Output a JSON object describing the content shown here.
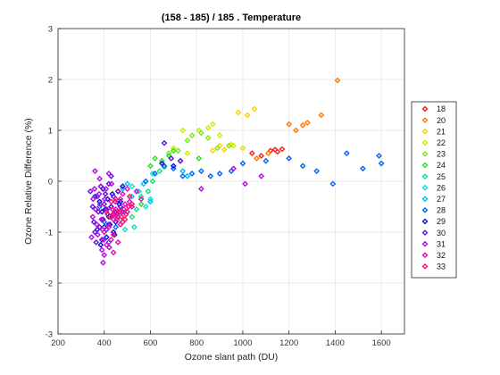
{
  "colors": {
    "18": "#ff1a1a",
    "19": "#ff7a00",
    "20": "#ff7a00",
    "21": "#ffd000",
    "22": "#c8f000",
    "23": "#7aea1a",
    "24": "#29e02a",
    "25": "#12e08a",
    "26": "#12e0d0",
    "27": "#00c0f0",
    "28": "#0a64f0",
    "29": "#1010e0",
    "30": "#6a10e0",
    "31": "#b010e0",
    "32": "#e010c0",
    "33": "#ff1070"
  },
  "chart_data": {
    "type": "scatter",
    "title": "(158 - 185) / 185 . Temperature",
    "xlabel": "Ozone slant path (DU)",
    "ylabel": "Ozone Relative Difference (%)",
    "xlim": [
      200,
      1700
    ],
    "ylim": [
      -3,
      3
    ],
    "xticks": [
      "200",
      "400",
      "600",
      "800",
      "1000",
      "1200",
      "1400",
      "1600"
    ],
    "yticks": [
      "-3",
      "-2",
      "-1",
      "0",
      "1",
      "2",
      "3"
    ],
    "grid": true,
    "legend_position": "right",
    "series": [
      {
        "name": "18",
        "points": [
          [
            1040,
            0.55
          ],
          [
            1080,
            0.5
          ],
          [
            1120,
            0.6
          ],
          [
            1140,
            0.62
          ],
          [
            1150,
            0.58
          ],
          [
            1170,
            0.63
          ]
        ]
      },
      {
        "name": "20",
        "points": [
          [
            1200,
            1.12
          ],
          [
            1230,
            1.0
          ],
          [
            1260,
            1.1
          ],
          [
            1280,
            1.15
          ],
          [
            1340,
            1.3
          ],
          [
            1410,
            1.98
          ],
          [
            1060,
            0.45
          ],
          [
            1110,
            0.55
          ]
        ]
      },
      {
        "name": "21",
        "points": [
          [
            980,
            1.35
          ],
          [
            1020,
            1.3
          ],
          [
            1050,
            1.42
          ],
          [
            900,
            0.7
          ],
          [
            950,
            0.72
          ],
          [
            870,
            0.6
          ],
          [
            920,
            0.62
          ],
          [
            1000,
            0.65
          ]
        ]
      },
      {
        "name": "22",
        "points": [
          [
            740,
            1.0
          ],
          [
            810,
            1.0
          ],
          [
            850,
            1.05
          ],
          [
            870,
            1.12
          ],
          [
            900,
            0.9
          ],
          [
            960,
            0.7
          ],
          [
            700,
            0.65
          ],
          [
            760,
            0.55
          ]
        ]
      },
      {
        "name": "23",
        "points": [
          [
            780,
            0.9
          ],
          [
            820,
            0.95
          ],
          [
            850,
            0.85
          ],
          [
            680,
            0.55
          ],
          [
            720,
            0.6
          ],
          [
            760,
            0.8
          ],
          [
            940,
            0.7
          ],
          [
            890,
            0.65
          ]
        ]
      },
      {
        "name": "24",
        "points": [
          [
            620,
            0.45
          ],
          [
            650,
            0.4
          ],
          [
            680,
            0.5
          ],
          [
            700,
            0.6
          ],
          [
            730,
            0.4
          ],
          [
            810,
            0.45
          ],
          [
            600,
            0.3
          ],
          [
            560,
            -0.45
          ]
        ]
      },
      {
        "name": "25",
        "points": [
          [
            560,
            -0.3
          ],
          [
            590,
            -0.2
          ],
          [
            610,
            0.0
          ],
          [
            640,
            0.2
          ],
          [
            660,
            0.28
          ],
          [
            520,
            -0.7
          ],
          [
            540,
            -0.55
          ],
          [
            500,
            -0.6
          ]
        ]
      },
      {
        "name": "26",
        "points": [
          [
            520,
            -0.1
          ],
          [
            550,
            -0.2
          ],
          [
            580,
            -0.5
          ],
          [
            600,
            -0.35
          ],
          [
            470,
            -0.75
          ],
          [
            490,
            -0.95
          ],
          [
            530,
            -0.9
          ],
          [
            610,
            0.15
          ]
        ]
      },
      {
        "name": "27",
        "points": [
          [
            480,
            -0.15
          ],
          [
            500,
            -0.05
          ],
          [
            520,
            -0.3
          ],
          [
            540,
            -0.2
          ],
          [
            570,
            -0.05
          ],
          [
            760,
            0.1
          ],
          [
            740,
            0.2
          ],
          [
            600,
            -0.4
          ]
        ]
      },
      {
        "name": "28",
        "points": [
          [
            1390,
            -0.05
          ],
          [
            1450,
            0.55
          ],
          [
            1520,
            0.25
          ],
          [
            1590,
            0.5
          ],
          [
            1600,
            0.35
          ],
          [
            1320,
            0.2
          ],
          [
            1260,
            0.3
          ],
          [
            1200,
            0.45
          ],
          [
            1100,
            0.4
          ],
          [
            1000,
            0.35
          ],
          [
            950,
            0.2
          ],
          [
            900,
            0.15
          ],
          [
            860,
            0.1
          ],
          [
            820,
            0.2
          ],
          [
            780,
            0.15
          ],
          [
            740,
            0.1
          ],
          [
            700,
            0.25
          ],
          [
            660,
            0.3
          ],
          [
            620,
            0.15
          ],
          [
            580,
            0.0
          ],
          [
            480,
            -0.6
          ],
          [
            450,
            -0.9
          ],
          [
            420,
            -1.2
          ],
          [
            400,
            -0.8
          ],
          [
            380,
            -0.5
          ]
        ]
      },
      {
        "name": "29",
        "points": [
          [
            380,
            -0.4
          ],
          [
            390,
            -0.6
          ],
          [
            400,
            -0.9
          ],
          [
            410,
            -1.1
          ],
          [
            420,
            -0.7
          ],
          [
            430,
            -0.5
          ],
          [
            440,
            -1.0
          ],
          [
            450,
            -0.8
          ],
          [
            460,
            -0.2
          ],
          [
            470,
            -0.4
          ],
          [
            480,
            -0.1
          ],
          [
            360,
            -0.3
          ],
          [
            370,
            -0.95
          ],
          [
            385,
            -1.25
          ],
          [
            395,
            -0.15
          ],
          [
            405,
            -0.55
          ],
          [
            415,
            -0.35
          ],
          [
            425,
            -0.85
          ],
          [
            435,
            -0.25
          ],
          [
            445,
            -1.05
          ],
          [
            455,
            -0.65
          ],
          [
            465,
            -0.45
          ],
          [
            650,
            0.35
          ],
          [
            700,
            0.3
          ]
        ]
      },
      {
        "name": "30",
        "points": [
          [
            340,
            -0.2
          ],
          [
            350,
            -0.5
          ],
          [
            355,
            -0.8
          ],
          [
            360,
            -1.0
          ],
          [
            365,
            -1.2
          ],
          [
            370,
            -0.3
          ],
          [
            375,
            -0.6
          ],
          [
            380,
            -0.9
          ],
          [
            385,
            -0.1
          ],
          [
            390,
            -1.15
          ],
          [
            395,
            -0.75
          ],
          [
            400,
            -0.45
          ],
          [
            405,
            -0.25
          ],
          [
            410,
            -0.95
          ],
          [
            415,
            -0.65
          ],
          [
            420,
            -0.05
          ],
          [
            430,
            0.1
          ],
          [
            440,
            -0.3
          ],
          [
            450,
            -0.6
          ],
          [
            460,
            -0.2
          ],
          [
            470,
            -0.5
          ],
          [
            660,
            0.75
          ],
          [
            690,
            0.45
          ],
          [
            730,
            0.4
          ]
        ]
      },
      {
        "name": "31",
        "points": [
          [
            345,
            -1.1
          ],
          [
            350,
            -0.7
          ],
          [
            352,
            -0.35
          ],
          [
            358,
            -0.15
          ],
          [
            362,
            -0.55
          ],
          [
            368,
            -0.85
          ],
          [
            372,
            -1.05
          ],
          [
            378,
            -0.25
          ],
          [
            382,
            -0.45
          ],
          [
            388,
            -0.75
          ],
          [
            392,
            -0.95
          ],
          [
            398,
            -1.15
          ],
          [
            402,
            -0.35
          ],
          [
            408,
            -0.15
          ],
          [
            412,
            -0.55
          ],
          [
            418,
            -0.85
          ],
          [
            422,
            -1.3
          ],
          [
            432,
            -0.05
          ],
          [
            438,
            -0.65
          ],
          [
            448,
            -0.4
          ],
          [
            458,
            -0.7
          ],
          [
            395,
            -1.6
          ],
          [
            400,
            -1.45
          ],
          [
            390,
            -1.35
          ],
          [
            420,
            0.15
          ],
          [
            360,
            0.2
          ],
          [
            380,
            0.05
          ],
          [
            820,
            -0.15
          ],
          [
            1010,
            -0.05
          ],
          [
            960,
            0.25
          ],
          [
            1080,
            0.1
          ]
        ]
      },
      {
        "name": "32",
        "points": [
          [
            400,
            -1.0
          ],
          [
            420,
            -0.9
          ],
          [
            440,
            -0.75
          ],
          [
            450,
            -0.55
          ],
          [
            460,
            -0.7
          ],
          [
            470,
            -0.6
          ],
          [
            480,
            -0.8
          ],
          [
            490,
            -0.45
          ],
          [
            500,
            -0.6
          ],
          [
            510,
            -0.4
          ],
          [
            520,
            -0.5
          ],
          [
            430,
            -1.15
          ],
          [
            410,
            -1.25
          ],
          [
            440,
            -1.4
          ],
          [
            460,
            -1.2
          ],
          [
            470,
            -0.35
          ],
          [
            480,
            -0.25
          ],
          [
            500,
            -0.15
          ],
          [
            540,
            -0.2
          ],
          [
            560,
            -0.35
          ]
        ]
      },
      {
        "name": "33",
        "points": [
          [
            410,
            -0.6
          ],
          [
            425,
            -0.7
          ],
          [
            435,
            -0.55
          ],
          [
            445,
            -0.65
          ],
          [
            455,
            -0.75
          ],
          [
            465,
            -0.6
          ],
          [
            475,
            -0.7
          ],
          [
            485,
            -0.55
          ],
          [
            495,
            -0.65
          ],
          [
            505,
            -0.5
          ],
          [
            430,
            -0.4
          ],
          [
            450,
            -0.35
          ],
          [
            470,
            -0.85
          ],
          [
            490,
            -0.75
          ],
          [
            510,
            -0.3
          ],
          [
            520,
            -0.45
          ],
          [
            440,
            -1.05
          ]
        ]
      }
    ]
  }
}
